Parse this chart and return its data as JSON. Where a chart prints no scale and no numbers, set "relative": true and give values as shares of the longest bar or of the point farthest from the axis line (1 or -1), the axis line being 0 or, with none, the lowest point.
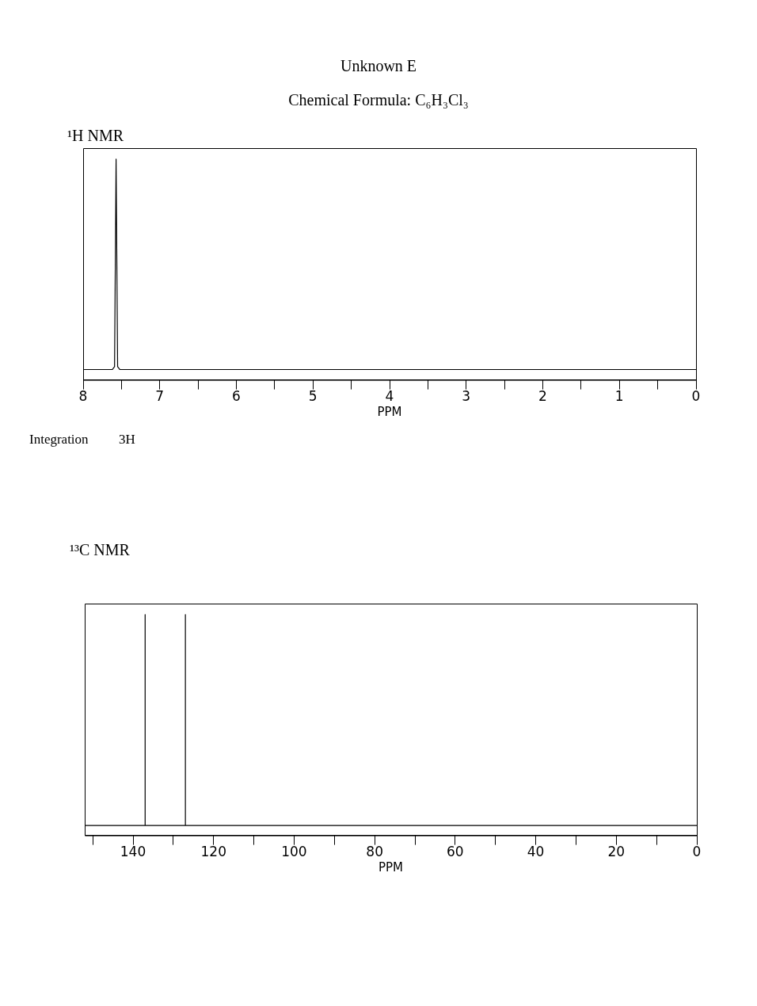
{
  "chart_data": [
    {
      "type": "other",
      "title": "Unknown E",
      "subtitle": "Chemical Formula: C₆H₃Cl₃"
    },
    {
      "type": "line",
      "title": "¹H NMR",
      "xlabel": "PPM",
      "relative": true,
      "marker": "none",
      "grid": false,
      "xlim": [
        8,
        0
      ],
      "xticks": [
        8,
        {
          "value": 7.5,
          "label": null
        },
        7,
        {
          "value": 6.5,
          "label": null
        },
        6,
        {
          "value": 5.5,
          "label": null
        },
        5,
        {
          "value": 4.5,
          "label": null
        },
        4,
        {
          "value": 3.5,
          "label": null
        },
        3,
        {
          "value": 2.5,
          "label": null
        },
        2,
        {
          "value": 1.5,
          "label": null
        },
        1,
        {
          "value": 0.5,
          "label": null
        },
        0
      ],
      "series": [
        {
          "color": "#000000",
          "x": [
            8,
            7.62,
            7.59,
            7.57,
            7.55,
            7.52,
            0
          ],
          "values": [
            0.047,
            0.047,
            0.06,
            1,
            0.06,
            0.047,
            0.047
          ]
        }
      ],
      "annotations": [
        "Integration",
        "3H"
      ]
    },
    {
      "type": "line",
      "title": "¹³C NMR",
      "xlabel": "PPM",
      "relative": true,
      "marker": "none",
      "grid": false,
      "xlim": [
        152,
        0
      ],
      "xticks": [
        {
          "value": 150,
          "label": null
        },
        140,
        {
          "value": 130,
          "label": null
        },
        120,
        {
          "value": 110,
          "label": null
        },
        100,
        {
          "value": 90,
          "label": null
        },
        80,
        {
          "value": 70,
          "label": null
        },
        60,
        {
          "value": 50,
          "label": null
        },
        40,
        {
          "value": 30,
          "label": null
        },
        20,
        {
          "value": 10,
          "label": null
        },
        0
      ],
      "series": [
        {
          "color": "#000000",
          "x": [
            152,
            137,
            137,
            137,
            127,
            127,
            127,
            0
          ],
          "values": [
            0.045,
            0.045,
            1,
            0.045,
            0.045,
            1,
            0.045,
            0.045
          ]
        }
      ]
    }
  ]
}
